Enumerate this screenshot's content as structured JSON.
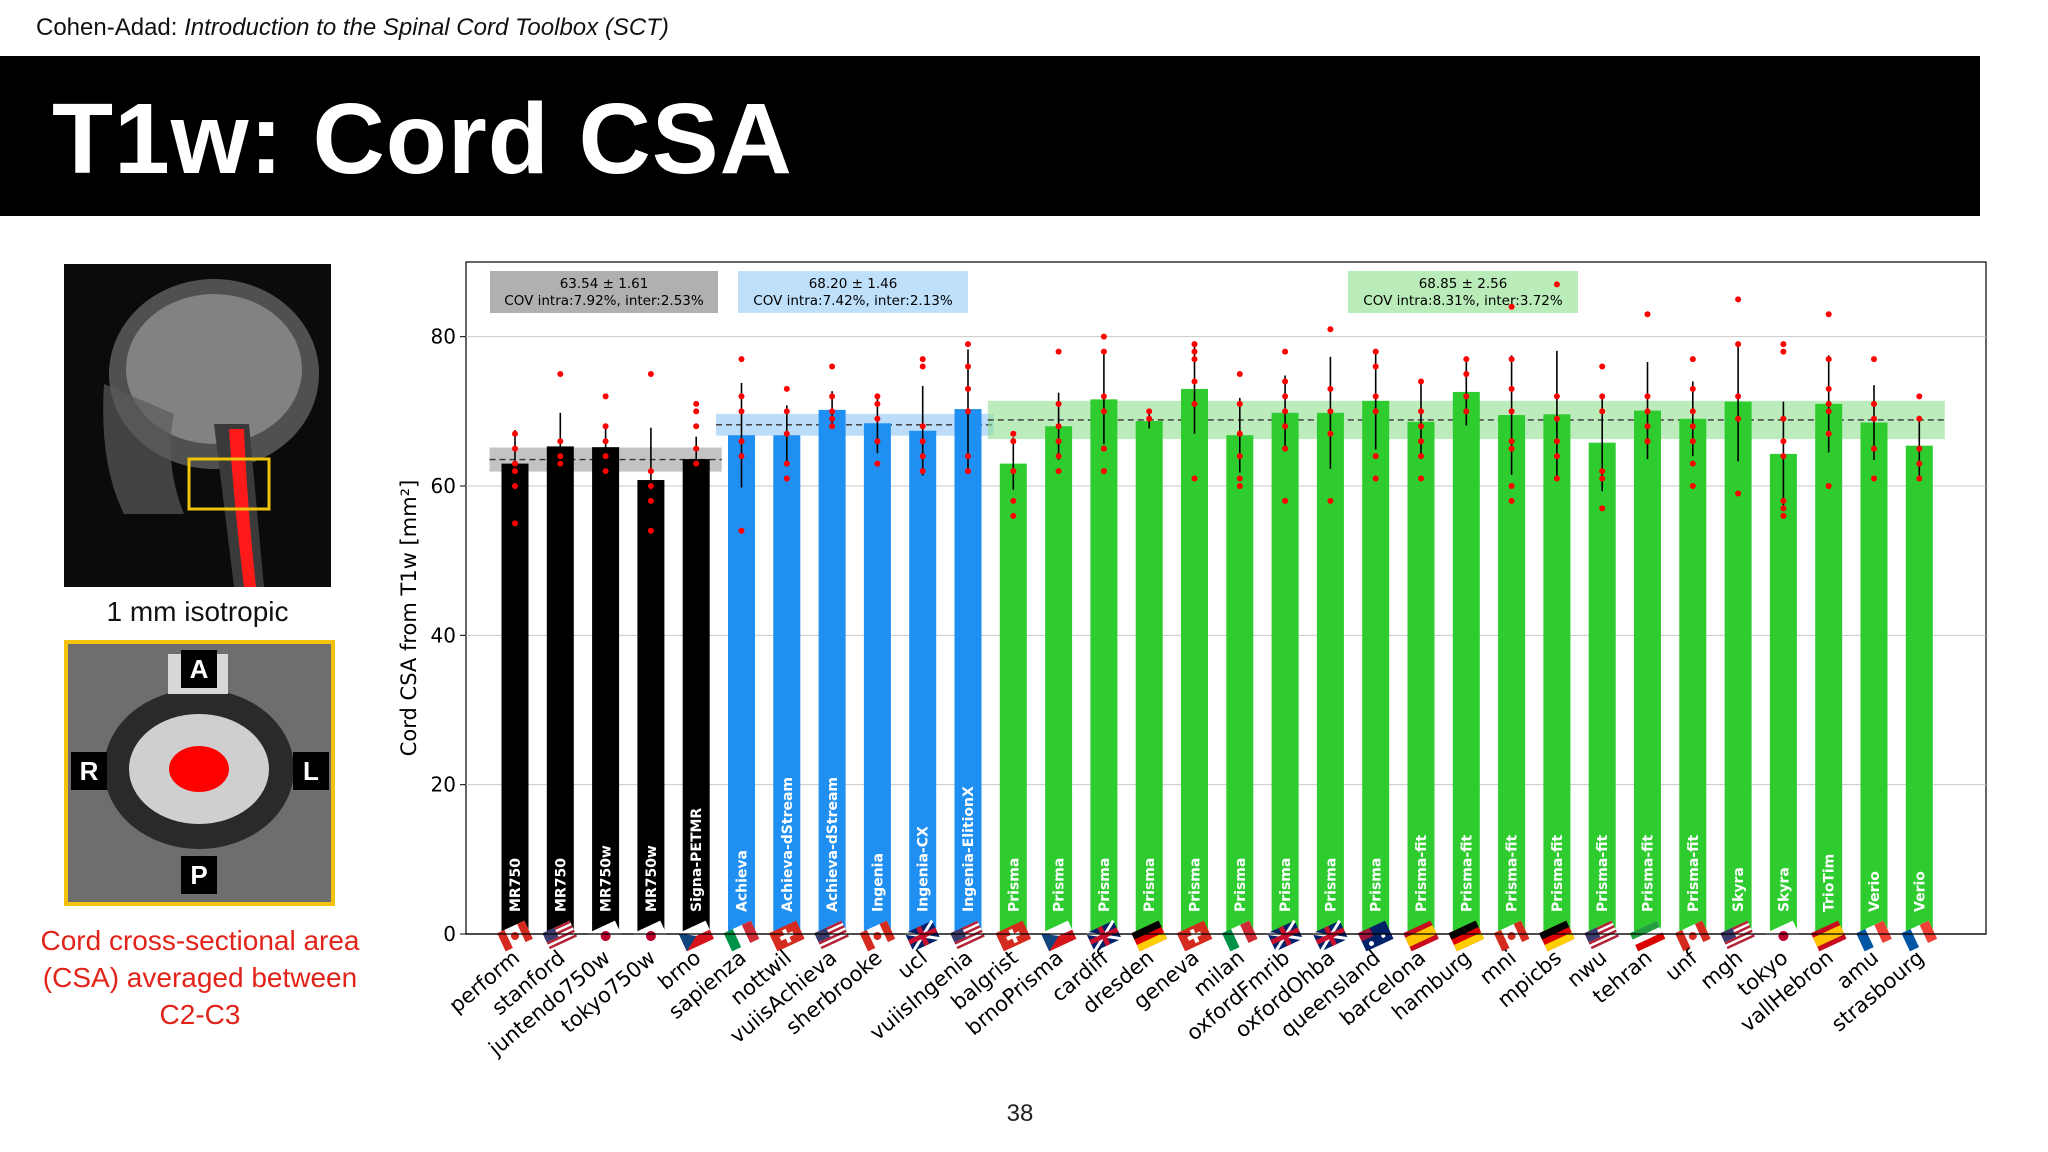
{
  "header": {
    "author": "Cohen-Adad:",
    "subtitle": "Introduction to the Spinal Cord Toolbox (SCT)"
  },
  "slide": {
    "title": "T1w: Cord CSA",
    "page_number": "38"
  },
  "left_panel": {
    "iso_caption": "1 mm isotropic",
    "orientation": {
      "anterior": "A",
      "right": "R",
      "left": "L",
      "posterior": "P"
    },
    "csa_caption": "Cord cross-sectional area (CSA) averaged between C2-C3"
  },
  "colors": {
    "ge": "#000000",
    "philips": "#1f8ff2",
    "siemens": "#2ecc2e",
    "points": "#ff0000",
    "stripes": [
      "#2a9fd8",
      "#8dc63f",
      "#f7941d",
      "#be1e2d"
    ]
  },
  "chart_data": {
    "type": "bar",
    "ylabel": "Cord CSA from T1w [mm²]",
    "ylim": [
      0,
      90
    ],
    "yticks": [
      0,
      20,
      40,
      60,
      80
    ],
    "grid": true,
    "vendor_groups": [
      {
        "name": "GE",
        "start": 0,
        "end": 4,
        "mean": 63.54,
        "sd": 1.61,
        "label_line1": "63.54 ± 1.61",
        "label_line2": "COV intra:7.92%, inter:2.53%"
      },
      {
        "name": "Philips",
        "start": 5,
        "end": 10,
        "mean": 68.2,
        "sd": 1.46,
        "label_line1": "68.20 ± 1.46",
        "label_line2": "COV intra:7.42%, inter:2.13%"
      },
      {
        "name": "Siemens",
        "start": 11,
        "end": 31,
        "mean": 68.85,
        "sd": 2.56,
        "label_line1": "68.85 ± 2.56",
        "label_line2": "COV intra:8.31%, inter:3.72%"
      }
    ],
    "sites": [
      {
        "name": "perform",
        "model": "MR750",
        "vendor": "ge",
        "flag": "ca",
        "mean": 63.0,
        "sd": 4.5,
        "points": [
          67,
          65,
          63,
          62,
          60,
          55
        ]
      },
      {
        "name": "stanford",
        "model": "MR750",
        "vendor": "ge",
        "flag": "us",
        "mean": 65.3,
        "sd": 4.5,
        "points": [
          75,
          66,
          64,
          63
        ]
      },
      {
        "name": "juntendo750w",
        "model": "MR750w",
        "vendor": "ge",
        "flag": "jp",
        "mean": 65.2,
        "sd": 3.0,
        "points": [
          72,
          68,
          66,
          64,
          62
        ]
      },
      {
        "name": "tokyo750w",
        "model": "MR750w",
        "vendor": "ge",
        "flag": "jp",
        "mean": 60.8,
        "sd": 7.0,
        "points": [
          75,
          62,
          60,
          58,
          54
        ]
      },
      {
        "name": "brno",
        "model": "Signa-PETMR",
        "vendor": "ge",
        "flag": "cz",
        "mean": 63.6,
        "sd": 3.0,
        "points": [
          71,
          70,
          68,
          65,
          63
        ]
      },
      {
        "name": "sapienza",
        "model": "Achieva",
        "vendor": "philips",
        "flag": "it",
        "mean": 66.8,
        "sd": 7.0,
        "points": [
          77,
          72,
          70,
          66,
          64,
          54
        ]
      },
      {
        "name": "nottwil",
        "model": "Achieva-dStream",
        "vendor": "philips",
        "flag": "ch",
        "mean": 66.8,
        "sd": 4.0,
        "points": [
          73,
          70,
          67,
          63,
          61
        ]
      },
      {
        "name": "vuiisAchieva",
        "model": "Achieva-dStream",
        "vendor": "philips",
        "flag": "us",
        "mean": 70.2,
        "sd": 2.5,
        "points": [
          76,
          72,
          70,
          69,
          68
        ]
      },
      {
        "name": "sherbrooke",
        "model": "Ingenia",
        "vendor": "philips",
        "flag": "ca",
        "mean": 68.4,
        "sd": 4.0,
        "points": [
          72,
          71,
          69,
          66,
          63
        ]
      },
      {
        "name": "ucl",
        "model": "Ingenia-CX",
        "vendor": "philips",
        "flag": "gb",
        "mean": 67.4,
        "sd": 6.0,
        "points": [
          77,
          76,
          68,
          66,
          64,
          62
        ]
      },
      {
        "name": "vuiisIngenia",
        "model": "Ingenia-ElitionX",
        "vendor": "philips",
        "flag": "us",
        "mean": 70.3,
        "sd": 8.0,
        "points": [
          79,
          76,
          73,
          70,
          64,
          62
        ]
      },
      {
        "name": "balgrist",
        "model": "Prisma",
        "vendor": "siemens",
        "flag": "ch",
        "mean": 63.0,
        "sd": 3.5,
        "points": [
          67,
          66,
          62,
          58,
          56
        ]
      },
      {
        "name": "brnoPrisma",
        "model": "Prisma",
        "vendor": "siemens",
        "flag": "cz",
        "mean": 68.0,
        "sd": 4.5,
        "points": [
          78,
          71,
          68,
          66,
          64,
          62
        ]
      },
      {
        "name": "cardiff",
        "model": "Prisma",
        "vendor": "siemens",
        "flag": "gb",
        "mean": 71.6,
        "sd": 6.0,
        "points": [
          80,
          78,
          72,
          70,
          65,
          62
        ]
      },
      {
        "name": "dresden",
        "model": "Prisma",
        "vendor": "siemens",
        "flag": "de",
        "mean": 68.7,
        "sd": 1.0,
        "points": [
          70,
          69
        ]
      },
      {
        "name": "geneva",
        "model": "Prisma",
        "vendor": "siemens",
        "flag": "ch",
        "mean": 73.0,
        "sd": 6.0,
        "points": [
          79,
          78,
          77,
          74,
          71,
          61
        ]
      },
      {
        "name": "milan",
        "model": "Prisma",
        "vendor": "siemens",
        "flag": "it",
        "mean": 66.8,
        "sd": 5.0,
        "points": [
          75,
          71,
          67,
          64,
          61,
          60
        ]
      },
      {
        "name": "oxfordFmrib",
        "model": "Prisma",
        "vendor": "siemens",
        "flag": "gb",
        "mean": 69.8,
        "sd": 5.0,
        "points": [
          78,
          74,
          72,
          70,
          68,
          65,
          58
        ]
      },
      {
        "name": "oxfordOhba",
        "model": "Prisma",
        "vendor": "siemens",
        "flag": "gb",
        "mean": 69.8,
        "sd": 7.5,
        "points": [
          81,
          73,
          70,
          67,
          58
        ]
      },
      {
        "name": "queensland",
        "model": "Prisma",
        "vendor": "siemens",
        "flag": "au",
        "mean": 71.4,
        "sd": 6.5,
        "points": [
          78,
          76,
          72,
          70,
          64,
          61
        ]
      },
      {
        "name": "barcelona",
        "model": "Prisma-fit",
        "vendor": "siemens",
        "flag": "es",
        "mean": 68.6,
        "sd": 5.0,
        "points": [
          74,
          70,
          68,
          66,
          64,
          61
        ]
      },
      {
        "name": "hamburg",
        "model": "Prisma-fit",
        "vendor": "siemens",
        "flag": "de",
        "mean": 72.6,
        "sd": 4.5,
        "points": [
          77,
          75,
          72,
          70
        ]
      },
      {
        "name": "mni",
        "model": "Prisma-fit",
        "vendor": "siemens",
        "flag": "ca",
        "mean": 69.5,
        "sd": 8.0,
        "points": [
          84,
          77,
          73,
          70,
          66,
          65,
          60,
          58
        ]
      },
      {
        "name": "mpicbs",
        "model": "Prisma-fit",
        "vendor": "siemens",
        "flag": "de",
        "mean": 69.6,
        "sd": 8.5,
        "points": [
          87,
          72,
          69,
          66,
          64,
          61
        ]
      },
      {
        "name": "nwu",
        "model": "Prisma-fit",
        "vendor": "siemens",
        "flag": "us",
        "mean": 65.8,
        "sd": 6.5,
        "points": [
          76,
          72,
          70,
          62,
          61,
          57
        ]
      },
      {
        "name": "tehran",
        "model": "Prisma-fit",
        "vendor": "siemens",
        "flag": "ir",
        "mean": 70.1,
        "sd": 6.5,
        "points": [
          83,
          72,
          70,
          68,
          66
        ]
      },
      {
        "name": "unf",
        "model": "Prisma-fit",
        "vendor": "siemens",
        "flag": "ca",
        "mean": 69.0,
        "sd": 5.0,
        "points": [
          77,
          73,
          70,
          68,
          66,
          63,
          60
        ]
      },
      {
        "name": "mgh",
        "model": "Skyra",
        "vendor": "siemens",
        "flag": "us",
        "mean": 71.3,
        "sd": 8.0,
        "points": [
          85,
          79,
          72,
          69,
          59
        ]
      },
      {
        "name": "tokyo",
        "model": "Skyra",
        "vendor": "siemens",
        "flag": "jp",
        "mean": 64.3,
        "sd": 7.0,
        "points": [
          79,
          78,
          69,
          66,
          64,
          58,
          57,
          56
        ]
      },
      {
        "name": "vallHebron",
        "model": "TrioTim",
        "vendor": "siemens",
        "flag": "es",
        "mean": 71.0,
        "sd": 6.5,
        "points": [
          83,
          77,
          73,
          71,
          70,
          67,
          60
        ]
      },
      {
        "name": "amu",
        "model": "Verio",
        "vendor": "siemens",
        "flag": "fr",
        "mean": 68.5,
        "sd": 5.0,
        "points": [
          77,
          71,
          69,
          65,
          61
        ]
      },
      {
        "name": "strasbourg",
        "model": "Verio",
        "vendor": "siemens",
        "flag": "fr",
        "mean": 65.4,
        "sd": 4.0,
        "points": [
          72,
          69,
          65,
          63,
          61
        ]
      }
    ]
  }
}
